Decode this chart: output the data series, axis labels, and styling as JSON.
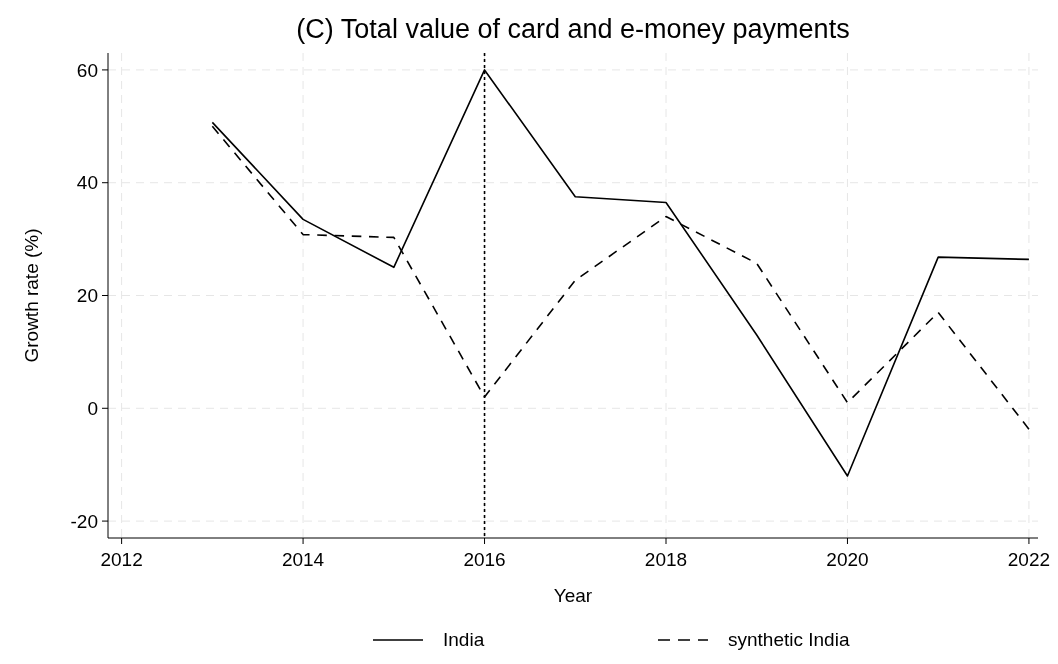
{
  "chart_data": {
    "type": "line",
    "title": "(C) Total value of card and e-money payments",
    "xlabel": "Year",
    "ylabel": "Growth rate (%)",
    "x": [
      2013,
      2014,
      2015,
      2016,
      2017,
      2018,
      2019,
      2020,
      2021,
      2022
    ],
    "series": [
      {
        "name": "India",
        "color": "#000000",
        "line_style": "solid",
        "values": [
          50.7,
          33.5,
          25,
          60,
          37.5,
          36.5,
          13,
          -12,
          26.8,
          26.4
        ]
      },
      {
        "name": "synthetic India",
        "color": "#000000",
        "line_style": "dashed",
        "values": [
          50,
          30.8,
          30.3,
          2,
          22.7,
          34,
          25.7,
          1,
          17,
          -3.7
        ]
      }
    ],
    "xlim": [
      2011.85,
      2022.1
    ],
    "xticks": [
      2012,
      2014,
      2016,
      2018,
      2020,
      2022
    ],
    "ylim": [
      -23,
      63
    ],
    "yticks": [
      -20,
      0,
      20,
      40,
      60
    ],
    "grid": true,
    "legend": "bottom",
    "ref_lines": [
      {
        "axis": "x",
        "value": 2016,
        "color": "#000000",
        "line_style": "dotted"
      }
    ]
  }
}
